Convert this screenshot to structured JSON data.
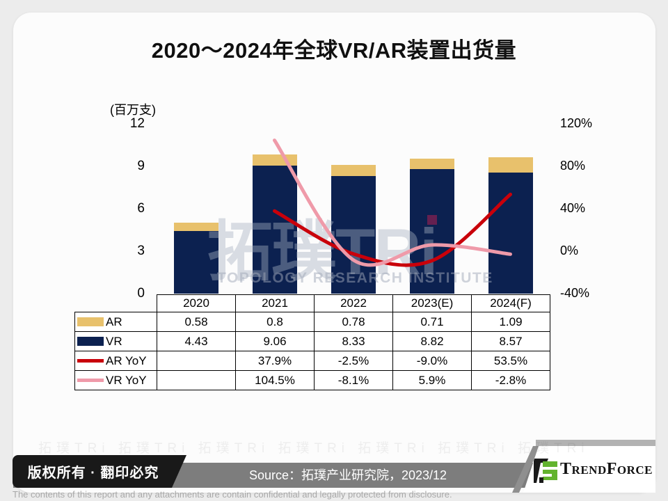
{
  "header": {
    "title": "2020～2024年全球VR/AR装置出货量"
  },
  "chart_data": {
    "type": "bar+line",
    "categories": [
      "2020",
      "2021",
      "2022",
      "2023(E)",
      "2024(F)"
    ],
    "bar_series": [
      {
        "name": "VR",
        "color": "#0c2150",
        "values": [
          4.43,
          9.06,
          8.33,
          8.82,
          8.57
        ]
      },
      {
        "name": "AR",
        "color": "#e8c16c",
        "values": [
          0.58,
          0.8,
          0.78,
          0.71,
          1.09
        ]
      }
    ],
    "line_series": [
      {
        "name": "AR YoY",
        "color": "#c9000a",
        "values": [
          null,
          37.9,
          -2.5,
          -9.0,
          53.5
        ]
      },
      {
        "name": "VR YoY",
        "color": "#ef9aa9",
        "values": [
          null,
          104.5,
          -8.1,
          5.9,
          -2.8
        ]
      }
    ],
    "left_axis": {
      "label": "(百万支)",
      "ticks": [
        12,
        9,
        6,
        3,
        0
      ],
      "min": 0,
      "max": 12
    },
    "right_axis": {
      "ticks": [
        120,
        80,
        40,
        0,
        -40
      ],
      "suffix": "%",
      "min": -40,
      "max": 120
    },
    "grid": "off",
    "legend_position": "table-left-column",
    "stacked": true
  },
  "table": {
    "years": [
      "2020",
      "2021",
      "2022",
      "2023(E)",
      "2024(F)"
    ],
    "rows": [
      {
        "label": "AR",
        "swatch": "bar-ar",
        "values": [
          "0.58",
          "0.8",
          "0.78",
          "0.71",
          "1.09"
        ]
      },
      {
        "label": "VR",
        "swatch": "bar-vr",
        "values": [
          "4.43",
          "9.06",
          "8.33",
          "8.82",
          "8.57"
        ]
      },
      {
        "label": "AR YoY",
        "swatch": "line-ar",
        "values": [
          "",
          "37.9%",
          "-2.5%",
          "-9.0%",
          "53.5%"
        ]
      },
      {
        "label": "VR YoY",
        "swatch": "line-vr",
        "values": [
          "",
          "104.5%",
          "-8.1%",
          "5.9%",
          "-2.8%"
        ]
      }
    ]
  },
  "watermark": {
    "logo": "拓璞TRi",
    "subtext": "TOPOLOGY RESEARCH INSTITUTE"
  },
  "footer": {
    "copyright": "版权所有 · 翻印必究",
    "source": "Source：拓璞产业研究院，2023/12",
    "brand": "TrendForce",
    "disclaimer": "The contents of this report and any attachments are contain confidential and legally protected from disclosure."
  },
  "colors": {
    "vr_bar": "#0c2150",
    "ar_bar": "#e8c16c",
    "ar_yoy_line": "#c9000a",
    "vr_yoy_line": "#ef9aa9",
    "footer_bar": "#7d7d7d",
    "badge": "#191919",
    "brand_green": "#62b32e",
    "watermark_dot": "#7c2150"
  }
}
